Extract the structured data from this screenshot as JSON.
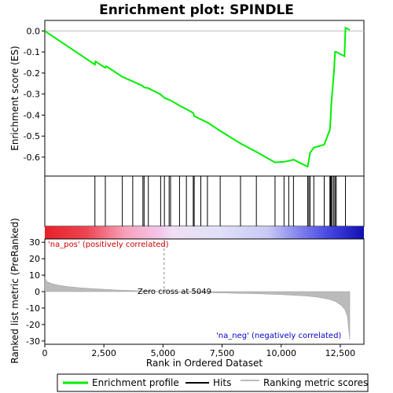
{
  "chart_data": {
    "type": "line",
    "title": "Enrichment plot: SPINDLE",
    "top_panel": {
      "ylabel": "Enrichment score (ES)",
      "ylim": [
        -0.69,
        0.05
      ],
      "yticks": [
        0.0,
        -0.1,
        -0.2,
        -0.3,
        -0.4,
        -0.5,
        -0.6
      ],
      "ytick_labels": [
        "0.0",
        "-0.1",
        "-0.2",
        "-0.3",
        "-0.4",
        "-0.5",
        "-0.6"
      ],
      "series": [
        {
          "name": "Enrichment profile",
          "color": "#00ee00",
          "x": [
            0,
            2120,
            2140,
            2560,
            2600,
            3280,
            3720,
            4150,
            4200,
            4380,
            4900,
            5060,
            5260,
            5320,
            5700,
            5990,
            6280,
            6320,
            6600,
            6880,
            7420,
            8280,
            8950,
            9740,
            10120,
            10320,
            10520,
            11120,
            11170,
            11220,
            11380,
            11820,
            12060,
            12090,
            12120,
            12170,
            12230,
            12280,
            12330,
            12680,
            12720,
            12900
          ],
          "y": [
            0.0,
            -0.16,
            -0.145,
            -0.175,
            -0.168,
            -0.218,
            -0.24,
            -0.262,
            -0.268,
            -0.272,
            -0.302,
            -0.318,
            -0.328,
            -0.33,
            -0.355,
            -0.372,
            -0.39,
            -0.405,
            -0.42,
            -0.435,
            -0.475,
            -0.535,
            -0.575,
            -0.625,
            -0.622,
            -0.618,
            -0.612,
            -0.645,
            -0.615,
            -0.58,
            -0.555,
            -0.54,
            -0.47,
            -0.42,
            -0.35,
            -0.28,
            -0.2,
            -0.1,
            -0.1,
            -0.12,
            0.015,
            0.005
          ]
        }
      ]
    },
    "hits": [
      2120,
      2560,
      3280,
      3720,
      4150,
      4200,
      4380,
      4900,
      5060,
      5260,
      5320,
      5700,
      5990,
      6280,
      6320,
      6600,
      6880,
      7420,
      8280,
      8950,
      9740,
      10120,
      10320,
      10520,
      11120,
      11170,
      11220,
      11380,
      11820,
      12060,
      12090,
      12120,
      12170,
      12230,
      12280,
      12330,
      12720
    ],
    "bottom_panel": {
      "xlabel": "Rank in Ordered Dataset",
      "ylabel": "Ranked list metric (PreRanked)",
      "xlim": [
        0,
        13500
      ],
      "ylim": [
        -32,
        32
      ],
      "xticks": [
        0,
        2500,
        5000,
        7500,
        10000,
        12500
      ],
      "xtick_labels": [
        "0",
        "2,500",
        "5,000",
        "7,500",
        "10,000",
        "12,500"
      ],
      "yticks": [
        30,
        20,
        10,
        0,
        -10,
        -20,
        -30
      ],
      "ytick_labels": [
        "30",
        "20",
        "10",
        "0",
        "-10",
        "-20",
        "-30"
      ],
      "metric_x": [
        0,
        100,
        300,
        600,
        1000,
        1500,
        2000,
        3000,
        4000,
        5049,
        6000,
        7500,
        9000,
        10000,
        11000,
        11500,
        12000,
        12300,
        12550,
        12700,
        12800,
        12900
      ],
      "metric_y": [
        8.5,
        6.0,
        4.8,
        3.8,
        3.0,
        2.3,
        1.8,
        1.0,
        0.5,
        0.0,
        -0.4,
        -0.8,
        -1.3,
        -1.8,
        -2.6,
        -3.3,
        -4.6,
        -6.0,
        -8.5,
        -11.0,
        -15.0,
        -29.0
      ],
      "zero_cross_rank": 5049,
      "zero_cross_label": "Zero cross at 5049",
      "pos_label": "'na_pos' (positively correlated)",
      "neg_label": "'na_neg' (negatively correlated)"
    },
    "legend": {
      "placement": "bottom",
      "items": [
        {
          "label": "Enrichment profile",
          "color": "#00ee00"
        },
        {
          "label": "Hits",
          "color": "#000000"
        },
        {
          "label": "Ranking metric scores",
          "color": "#bbbbbb"
        }
      ]
    }
  }
}
